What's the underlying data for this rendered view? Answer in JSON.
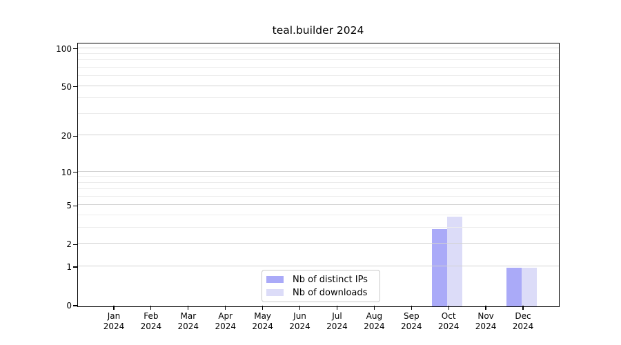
{
  "title": "teal.builder 2024",
  "chart_data": {
    "type": "bar",
    "title": "teal.builder 2024",
    "x_months": [
      "Jan",
      "Feb",
      "Mar",
      "Apr",
      "May",
      "Jun",
      "Jul",
      "Aug",
      "Sep",
      "Oct",
      "Nov",
      "Dec"
    ],
    "x_year": "2024",
    "y_scale": "log1p",
    "ylim": [
      0,
      110
    ],
    "y_ticks": [
      0,
      1,
      2,
      5,
      10,
      20,
      50,
      100
    ],
    "y_minor_gridlines": [
      3,
      4,
      6,
      7,
      8,
      9,
      30,
      40,
      60,
      70,
      80,
      90
    ],
    "grid": "horizontal",
    "legend_position": "bottom-center",
    "series": [
      {
        "name": "Nb of distinct IPs",
        "color": "#aaaaf8",
        "values": [
          0,
          0,
          0,
          0,
          0,
          0,
          0,
          0,
          0,
          3,
          0,
          1
        ]
      },
      {
        "name": "Nb of downloads",
        "color": "#dcdcf8",
        "values": [
          0,
          0,
          0,
          0,
          0,
          0,
          0,
          0,
          0,
          4,
          0,
          1
        ]
      }
    ]
  }
}
